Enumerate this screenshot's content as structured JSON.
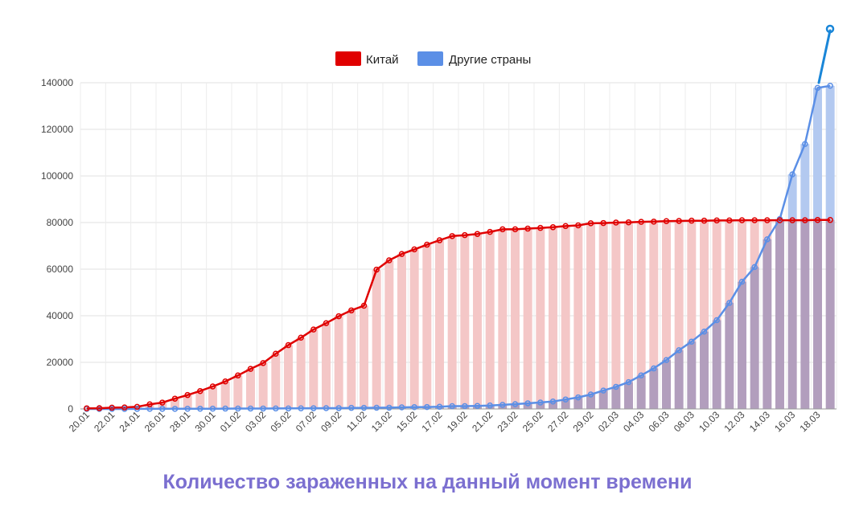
{
  "title": "Количество зараженных на данный момент времени",
  "colors": {
    "china_line": "#e00000",
    "china_bar": "#f4c7c7",
    "other_line": "#5b8fe6",
    "other_bar": "#b3c9f0",
    "overlap_bar": "#b29ebd",
    "title": "#7b6fd0"
  },
  "chart_data": {
    "type": "line",
    "title": "Количество зараженных на данный момент времени",
    "xlabel": "",
    "ylabel": "",
    "ylim": [
      0,
      140000
    ],
    "y_ticks": [
      0,
      20000,
      40000,
      60000,
      80000,
      100000,
      120000,
      140000
    ],
    "grid": true,
    "legend_position": "top-center",
    "x": [
      "20.01",
      "21.01",
      "22.01",
      "23.01",
      "24.01",
      "25.01",
      "26.01",
      "27.01",
      "28.01",
      "29.01",
      "30.01",
      "31.01",
      "01.02",
      "02.02",
      "03.02",
      "04.02",
      "05.02",
      "06.02",
      "07.02",
      "08.02",
      "09.02",
      "10.02",
      "11.02",
      "12.02",
      "13.02",
      "14.02",
      "15.02",
      "16.02",
      "17.02",
      "18.02",
      "19.02",
      "20.02",
      "21.02",
      "22.02",
      "23.02",
      "24.02",
      "25.02",
      "26.02",
      "27.02",
      "28.02",
      "29.02",
      "01.03",
      "02.03",
      "03.03",
      "04.03",
      "05.03",
      "06.03",
      "07.03",
      "08.03",
      "09.03",
      "10.03",
      "11.03",
      "12.03",
      "13.03",
      "14.03",
      "15.03",
      "16.03",
      "17.03",
      "18.03",
      "19.03"
    ],
    "x_tick_labels": [
      "20.01",
      "22.01",
      "24.01",
      "26.01",
      "28.01",
      "30.01",
      "01.02",
      "03.02",
      "05.02",
      "07.02",
      "09.02",
      "11.02",
      "13.02",
      "15.02",
      "17.02",
      "19.02",
      "21.02",
      "23.02",
      "25.02",
      "27.02",
      "29.02",
      "02.03",
      "04.03",
      "06.03",
      "08.03",
      "10.03",
      "12.03",
      "14.03",
      "16.03",
      "18.03"
    ],
    "series": [
      {
        "name": "Китай",
        "values": [
          278,
          326,
          547,
          639,
          916,
          1979,
          2737,
          4409,
          5970,
          7678,
          9658,
          11800,
          14380,
          17200,
          19700,
          23700,
          27400,
          30600,
          34100,
          36800,
          39800,
          42300,
          44300,
          59800,
          63800,
          66500,
          68500,
          70500,
          72400,
          74200,
          74600,
          75100,
          76000,
          77100,
          77100,
          77400,
          77700,
          78000,
          78500,
          78800,
          79700,
          79800,
          80000,
          80100,
          80300,
          80400,
          80600,
          80700,
          80800,
          80800,
          80900,
          80900,
          81000,
          81000,
          81000,
          81000,
          81000,
          81000,
          81100,
          81100
        ]
      },
      {
        "name": "Другие страны",
        "values": [
          4,
          6,
          8,
          14,
          25,
          40,
          57,
          64,
          87,
          105,
          118,
          153,
          173,
          183,
          188,
          212,
          227,
          265,
          317,
          343,
          361,
          457,
          476,
          523,
          538,
          685,
          780,
          840,
          927,
          1200,
          1220,
          1312,
          1490,
          1770,
          2060,
          2430,
          2780,
          3200,
          4070,
          4970,
          6200,
          7900,
          9500,
          11500,
          14400,
          17400,
          21000,
          25200,
          28900,
          33200,
          38100,
          45500,
          54600,
          60900,
          72800,
          81500,
          100700,
          113700,
          137800,
          138700
        ]
      }
    ]
  }
}
